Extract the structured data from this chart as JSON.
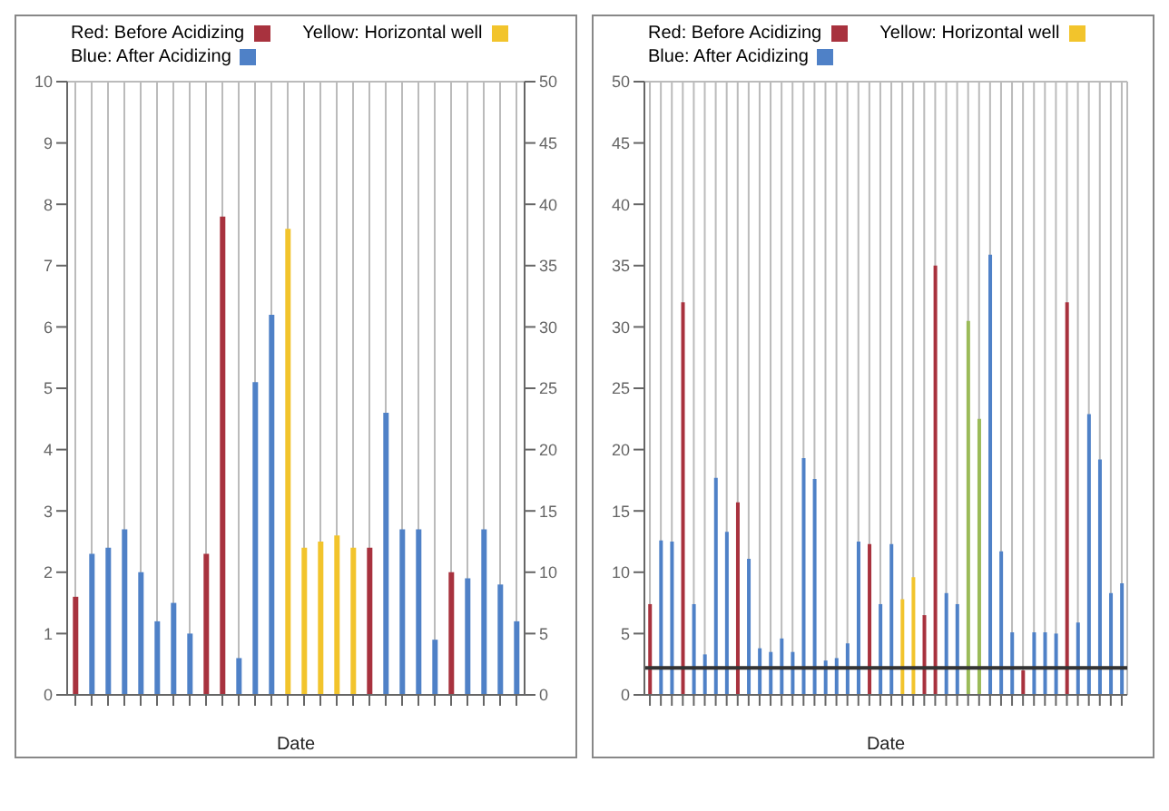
{
  "chart_data": [
    {
      "type": "bar",
      "stacked": true,
      "xlabel": "Date",
      "legend": "top left",
      "grid": true,
      "categories": [
        null,
        null,
        null,
        null,
        null,
        null,
        null,
        null,
        null,
        null,
        null,
        null,
        null,
        null,
        null,
        null,
        null,
        null,
        null,
        null,
        null,
        null,
        null,
        null,
        null,
        null,
        null,
        null
      ],
      "ylim": [
        0,
        10
      ],
      "yticks": [
        0,
        1,
        2,
        3,
        4,
        5,
        6,
        7,
        8,
        9,
        10
      ],
      "y2lim": [
        0,
        50
      ],
      "y2ticks": [
        0,
        5,
        10,
        15,
        20,
        25,
        30,
        35,
        40,
        45,
        50
      ],
      "series": [
        {
          "name": "Red: Before Acidizing",
          "color": "#a8323e",
          "values": [
            1.6,
            null,
            null,
            null,
            null,
            null,
            null,
            null,
            2.3,
            7.8,
            null,
            null,
            null,
            null,
            null,
            null,
            null,
            null,
            2.4,
            null,
            null,
            null,
            null,
            2.0,
            null,
            null,
            null,
            null
          ]
        },
        {
          "name": "Yellow: Horizontal well",
          "color": "#f2c42c",
          "values": [
            null,
            null,
            null,
            null,
            null,
            null,
            null,
            null,
            null,
            null,
            null,
            null,
            null,
            7.6,
            2.4,
            2.5,
            2.6,
            2.4,
            null,
            null,
            null,
            null,
            null,
            null,
            null,
            null,
            null,
            null
          ]
        },
        {
          "name": "Blue: After Acidizing",
          "color": "#4f81c7",
          "values": [
            null,
            2.3,
            2.4,
            2.7,
            2.0,
            1.2,
            1.5,
            1.0,
            null,
            null,
            0.6,
            5.1,
            6.2,
            null,
            null,
            null,
            null,
            null,
            null,
            4.6,
            2.7,
            2.7,
            0.9,
            null,
            1.9,
            2.7,
            1.8,
            1.2
          ]
        }
      ]
    },
    {
      "type": "bar",
      "stacked": true,
      "xlabel": "Date",
      "legend": "top left",
      "grid": true,
      "categories": [
        null,
        null,
        null,
        null,
        null,
        null,
        null,
        null,
        null,
        null,
        null,
        null,
        null,
        null,
        null,
        null,
        null,
        null,
        null,
        null,
        null,
        null,
        null,
        null,
        null,
        null,
        null,
        null,
        null,
        null,
        null,
        null,
        null,
        null,
        null,
        null,
        null,
        null,
        null,
        null,
        null,
        null,
        null,
        null
      ],
      "ylim": [
        0,
        50
      ],
      "yticks": [
        0,
        5,
        10,
        15,
        20,
        25,
        30,
        35,
        40,
        45,
        50
      ],
      "ref_lines": [
        {
          "axis": "y",
          "value": 2.2,
          "color": "#333333"
        }
      ],
      "series": [
        {
          "name": "Red: Before Acidizing",
          "color": "#a8323e",
          "values": [
            7.4,
            null,
            null,
            32,
            null,
            null,
            null,
            null,
            15.7,
            null,
            null,
            null,
            null,
            null,
            null,
            null,
            null,
            null,
            null,
            null,
            12.3,
            null,
            null,
            null,
            null,
            6.5,
            35,
            null,
            null,
            null,
            null,
            null,
            null,
            null,
            2.0,
            null,
            null,
            null,
            32,
            null,
            null,
            null,
            null,
            null
          ]
        },
        {
          "name": "Yellow: Horizontal well",
          "color": "#f2c42c",
          "values": [
            null,
            null,
            null,
            null,
            null,
            null,
            null,
            null,
            null,
            null,
            null,
            null,
            null,
            null,
            null,
            null,
            null,
            null,
            null,
            null,
            null,
            null,
            null,
            7.8,
            9.6,
            null,
            null,
            null,
            null,
            null,
            null,
            null,
            null,
            null,
            null,
            null,
            null,
            null,
            null,
            null,
            null,
            null,
            null,
            null
          ]
        },
        {
          "name": "Blue: After Acidizing",
          "color": "#4f81c7",
          "values": [
            null,
            12.6,
            12.5,
            null,
            7.4,
            3.3,
            17.7,
            13.3,
            null,
            11.1,
            3.8,
            3.5,
            4.6,
            3.5,
            19.3,
            17.6,
            2.8,
            3.0,
            4.2,
            12.5,
            null,
            7.4,
            12.3,
            null,
            null,
            null,
            null,
            8.3,
            7.4,
            null,
            null,
            35.9,
            11.7,
            5.1,
            null,
            5.1,
            5.1,
            5.0,
            null,
            5.9,
            22.9,
            19.2,
            8.3,
            9.1
          ]
        },
        {
          "color": "#9bbb59",
          "values": [
            null,
            null,
            null,
            null,
            null,
            null,
            null,
            null,
            null,
            null,
            null,
            null,
            null,
            null,
            null,
            null,
            null,
            null,
            null,
            null,
            null,
            null,
            null,
            null,
            null,
            null,
            null,
            null,
            null,
            30.5,
            22.5,
            null,
            null,
            null,
            null,
            null,
            null,
            null,
            null,
            null,
            null,
            null,
            null,
            null
          ]
        }
      ]
    }
  ]
}
